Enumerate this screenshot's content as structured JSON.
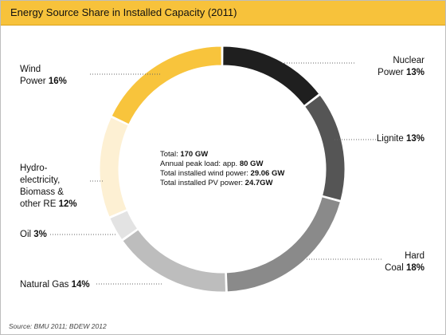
{
  "title": "Energy Source Share in Installed Capacity (2011)",
  "source": "Source: BMU 2011; BDEW 2012",
  "center_info": [
    {
      "label": "Total: ",
      "value": "170 GW"
    },
    {
      "label": "Annual peak load: app. ",
      "value": "80 GW"
    },
    {
      "label": "Total installed wind power: ",
      "value": "29.06 GW"
    },
    {
      "label": "Total installed PV power: ",
      "value": "24.7GW"
    }
  ],
  "chart_data": {
    "type": "pie",
    "title": "Energy Source Share in Installed Capacity (2011)",
    "unit": "%",
    "slices": [
      {
        "name_lines": [
          "Nuclear",
          "Power"
        ],
        "value": 13,
        "value_label": "13%",
        "color": "#1f1f1f"
      },
      {
        "name_lines": [
          "Lignite"
        ],
        "value": 13,
        "value_label": "13%",
        "color": "#555555"
      },
      {
        "name_lines": [
          "Hard",
          "Coal"
        ],
        "value": 18,
        "value_label": "18%",
        "color": "#8a8a8a"
      },
      {
        "name_lines": [
          "Natural Gas"
        ],
        "value": 14,
        "value_label": "14%",
        "color": "#bdbdbd"
      },
      {
        "name_lines": [
          "Oil"
        ],
        "value": 3,
        "value_label": "3%",
        "color": "#e3e3e3"
      },
      {
        "name_lines": [
          "Hydro-",
          "electricity,",
          "Biomass &",
          "other RE"
        ],
        "value": 12,
        "value_label": "12%",
        "color": "#fdf0d3"
      },
      {
        "name_lines": [
          "Wind",
          "Power"
        ],
        "value": 16,
        "value_label": "16%",
        "color": "#f8c43c"
      }
    ]
  }
}
